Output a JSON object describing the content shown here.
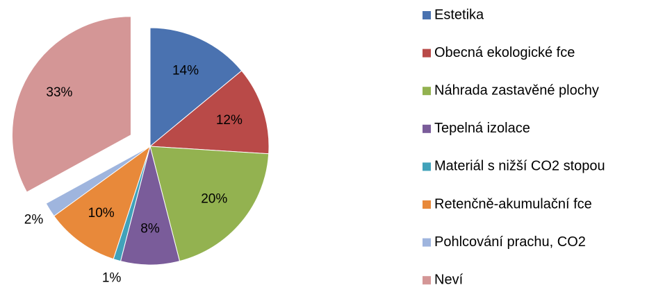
{
  "chart_data": {
    "type": "pie",
    "categories": [
      "Estetika",
      "Obecná ekologické fce",
      "Náhrada zastavěné plochy",
      "Tepelná izolace",
      "Materiál s nižší CO2 stopou",
      "Retenčně-akumulační fce",
      "Pohlcování prachu, CO2",
      "Neví"
    ],
    "values": [
      14,
      12,
      20,
      8,
      1,
      10,
      2,
      33
    ],
    "value_labels": [
      "14%",
      "12%",
      "20%",
      "8%",
      "1%",
      "10%",
      "2%",
      "33%"
    ],
    "colors": [
      "#4a72b0",
      "#b94a48",
      "#93b250",
      "#7a5c9a",
      "#41a2ba",
      "#e8893a",
      "#9fb5de",
      "#d49696"
    ],
    "exploded_slice": 7,
    "legend": "right"
  }
}
